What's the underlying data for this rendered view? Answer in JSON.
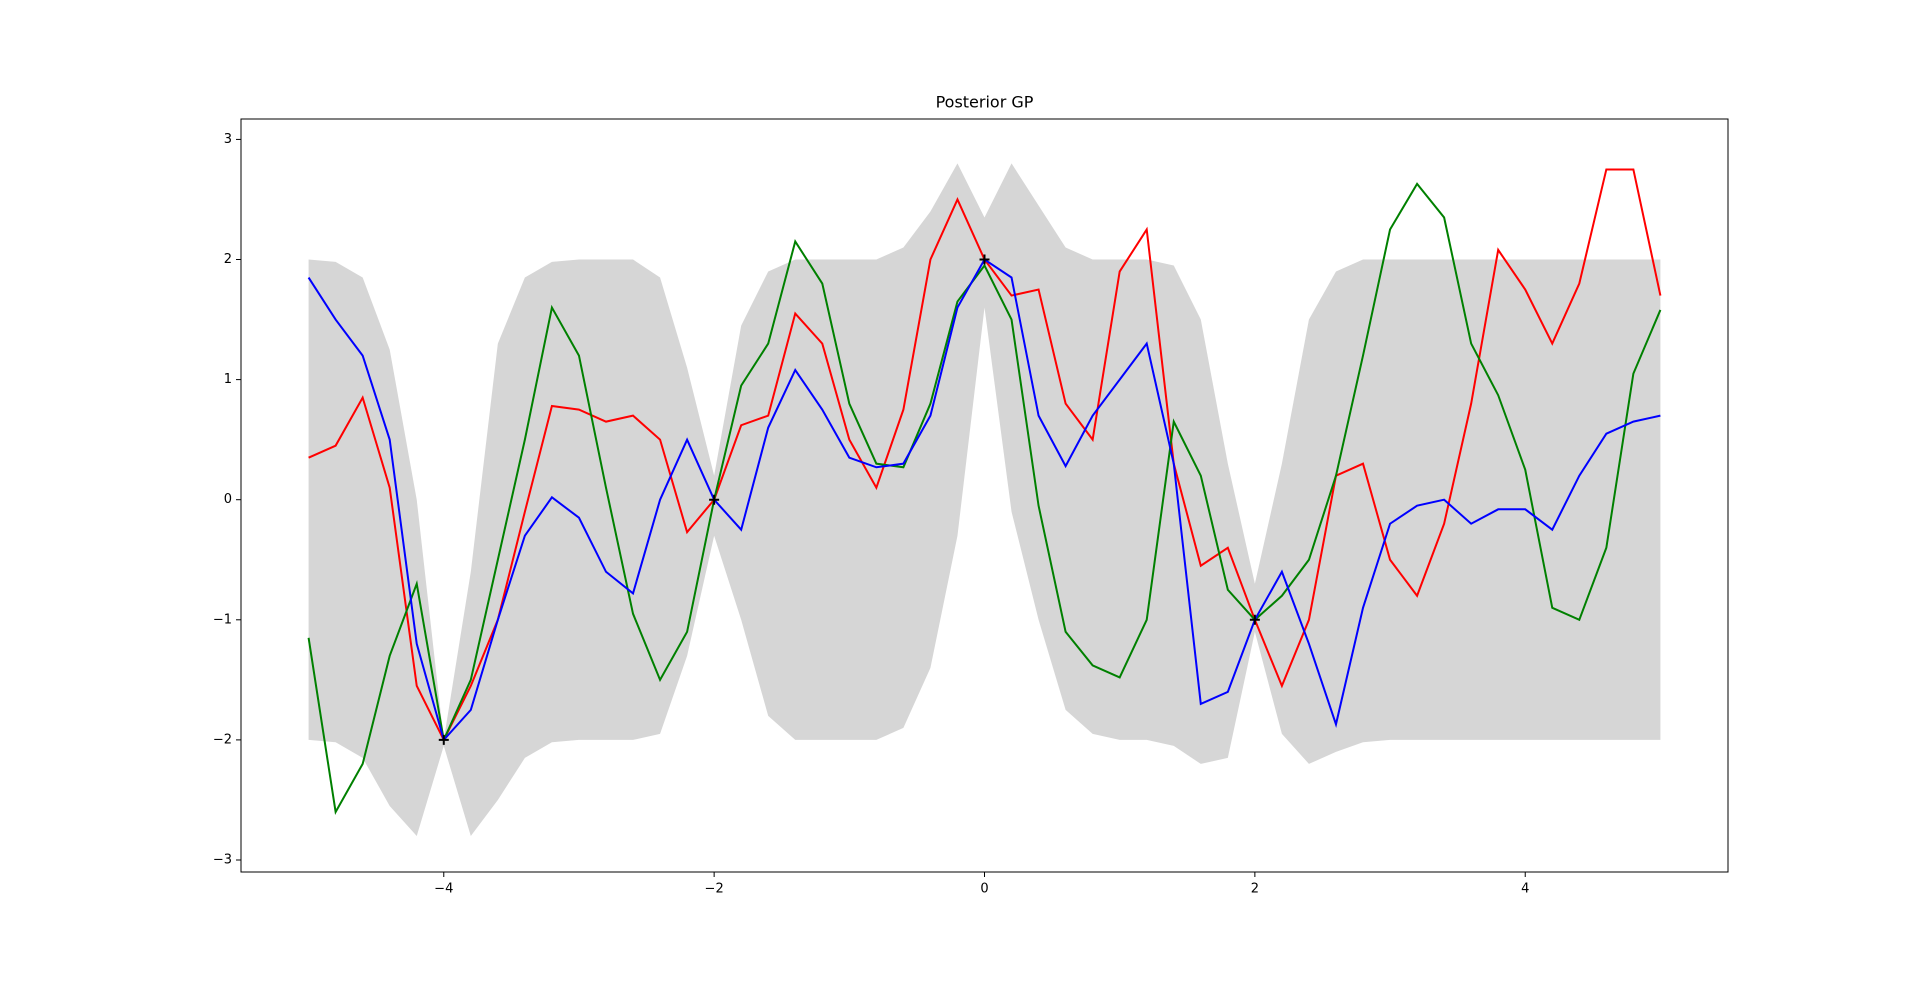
{
  "chart_data": {
    "type": "line",
    "title": "Posterior GP",
    "x": [
      -5,
      -4.8,
      -4.6,
      -4.4,
      -4.2,
      -4,
      -3.8,
      -3.6,
      -3.4,
      -3.2,
      -3,
      -2.8,
      -2.6,
      -2.4,
      -2.2,
      -2,
      -1.8,
      -1.6,
      -1.4,
      -1.2,
      -1,
      -0.8,
      -0.6,
      -0.4,
      -0.2,
      0,
      0.2,
      0.4,
      0.6,
      0.8,
      1,
      1.2,
      1.4,
      1.6,
      1.8,
      2,
      2.2,
      2.4,
      2.6,
      2.8,
      3,
      3.2,
      3.4,
      3.6,
      3.8,
      4,
      4.2,
      4.4,
      4.6,
      4.8,
      5
    ],
    "band": {
      "color": "#d6d6d6",
      "upper": [
        2.0,
        1.98,
        1.85,
        1.25,
        0.0,
        -2.0,
        -0.6,
        1.3,
        1.85,
        1.98,
        2.0,
        2.0,
        2.0,
        1.85,
        1.1,
        0.2,
        1.45,
        1.9,
        2.0,
        2.0,
        2.0,
        2.0,
        2.1,
        2.4,
        2.8,
        2.35,
        2.8,
        2.45,
        2.1,
        2.0,
        2.0,
        2.0,
        1.95,
        1.5,
        0.3,
        -0.7,
        0.3,
        1.5,
        1.9,
        2.0,
        2.0,
        2.0,
        2.0,
        2.0,
        2.0,
        2.0,
        2.0,
        2.0,
        2.0,
        2.0,
        2.0
      ],
      "lower": [
        -2.0,
        -2.02,
        -2.15,
        -2.55,
        -2.8,
        -2.05,
        -2.8,
        -2.5,
        -2.15,
        -2.02,
        -2.0,
        -2.0,
        -2.0,
        -1.95,
        -1.3,
        -0.3,
        -1.0,
        -1.8,
        -2.0,
        -2.0,
        -2.0,
        -2.0,
        -1.9,
        -1.4,
        -0.3,
        1.6,
        -0.1,
        -1.0,
        -1.75,
        -1.95,
        -2.0,
        -2.0,
        -2.05,
        -2.2,
        -2.15,
        -1.1,
        -1.95,
        -2.2,
        -2.1,
        -2.02,
        -2.0,
        -2.0,
        -2.0,
        -2.0,
        -2.0,
        -2.0,
        -2.0,
        -2.0,
        -2.0,
        -2.0,
        -2.0
      ]
    },
    "series": [
      {
        "color": "#ff0000",
        "values": [
          0.35,
          0.45,
          0.85,
          0.1,
          -1.55,
          -2.0,
          -1.55,
          -1.0,
          -0.1,
          0.78,
          0.75,
          0.65,
          0.7,
          0.5,
          -0.27,
          0,
          0.62,
          0.7,
          1.55,
          1.3,
          0.5,
          0.1,
          0.75,
          2.0,
          2.5,
          2.0,
          1.7,
          1.75,
          0.8,
          0.5,
          1.9,
          2.25,
          0.3,
          -0.55,
          -0.4,
          -1.0,
          -1.55,
          -1.0,
          0.2,
          0.3,
          -0.5,
          -0.8,
          -0.2,
          0.8,
          2.08,
          1.75,
          1.3,
          1.8,
          2.75,
          2.75,
          1.7
        ]
      },
      {
        "color": "#008000",
        "values": [
          -1.15,
          -2.6,
          -2.2,
          -1.3,
          -0.7,
          -2.0,
          -1.5,
          -0.5,
          0.5,
          1.6,
          1.2,
          0.1,
          -0.95,
          -1.5,
          -1.1,
          0,
          0.95,
          1.3,
          2.15,
          1.8,
          0.8,
          0.3,
          0.27,
          0.8,
          1.65,
          1.95,
          1.5,
          -0.05,
          -1.1,
          -1.38,
          -1.48,
          -1.0,
          0.65,
          0.2,
          -0.75,
          -1.0,
          -0.8,
          -0.5,
          0.2,
          1.2,
          2.25,
          2.63,
          2.35,
          1.3,
          0.87,
          0.25,
          -0.9,
          -1.0,
          -0.4,
          1.05,
          1.58
        ]
      },
      {
        "color": "#0000ff",
        "values": [
          1.85,
          1.5,
          1.2,
          0.5,
          -1.2,
          -2.0,
          -1.75,
          -1.0,
          -0.3,
          0.02,
          -0.15,
          -0.6,
          -0.78,
          0.0,
          0.5,
          0,
          -0.25,
          0.6,
          1.08,
          0.75,
          0.35,
          0.27,
          0.3,
          0.7,
          1.6,
          2.0,
          1.85,
          0.7,
          0.28,
          0.7,
          1.0,
          1.3,
          0.3,
          -1.7,
          -1.6,
          -1.0,
          -0.6,
          -1.2,
          -1.87,
          -0.9,
          -0.2,
          -0.05,
          0.0,
          -0.2,
          -0.08,
          -0.08,
          -0.25,
          0.2,
          0.55,
          0.65,
          0.7
        ]
      }
    ],
    "points": {
      "color": "#000000",
      "x": [
        -4,
        -2,
        0,
        2
      ],
      "y": [
        -2,
        0,
        2,
        -1
      ]
    },
    "xlim": [
      -5.5,
      5.5
    ],
    "ylim": [
      -3.1,
      3.17
    ],
    "xticks": [
      {
        "value": -4,
        "label": "−4"
      },
      {
        "value": -2,
        "label": "−2"
      },
      0,
      2,
      4
    ],
    "yticks": [
      {
        "value": -3,
        "label": "−3"
      },
      {
        "value": -2,
        "label": "−2"
      },
      {
        "value": -1,
        "label": "−1"
      },
      0,
      1,
      2,
      3
    ],
    "grid": false
  }
}
